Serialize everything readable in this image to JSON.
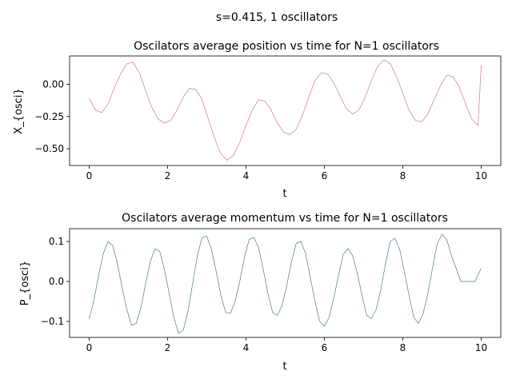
{
  "suptitle": "s=0.415, 1 oscillators",
  "chart_data": [
    {
      "type": "line",
      "title": "Oscilators average position vs time for N=1 oscillators",
      "xlabel": "t",
      "ylabel": "X_{osci}",
      "xlim": [
        -0.5,
        10.5
      ],
      "ylim": [
        -0.63,
        0.22
      ],
      "xticks": [
        0,
        2,
        4,
        6,
        8,
        10
      ],
      "xtick_labels": [
        "0",
        "2",
        "4",
        "6",
        "8",
        "10"
      ],
      "yticks": [
        0.0,
        -0.25,
        -0.5
      ],
      "ytick_labels": [
        "0.00",
        "−0.25",
        "−0.50"
      ],
      "color": "#d1788d",
      "x": [
        0,
        0.16,
        0.32,
        0.48,
        0.64,
        0.8,
        0.96,
        1.12,
        1.28,
        1.44,
        1.6,
        1.76,
        1.92,
        2.08,
        2.24,
        2.4,
        2.56,
        2.72,
        2.88,
        3.04,
        3.2,
        3.36,
        3.52,
        3.68,
        3.84,
        4.0,
        4.16,
        4.32,
        4.48,
        4.64,
        4.8,
        4.96,
        5.12,
        5.28,
        5.44,
        5.6,
        5.76,
        5.92,
        6.08,
        6.24,
        6.4,
        6.56,
        6.72,
        6.88,
        7.04,
        7.2,
        7.36,
        7.52,
        7.68,
        7.84,
        8.0,
        8.16,
        8.32,
        8.48,
        8.64,
        8.8,
        8.96,
        9.12,
        9.28,
        9.44,
        9.6,
        9.76,
        9.92
      ],
      "y": [
        -0.11,
        -0.2,
        -0.22,
        -0.15,
        -0.03,
        0.08,
        0.16,
        0.17,
        0.09,
        -0.05,
        -0.18,
        -0.27,
        -0.3,
        -0.28,
        -0.2,
        -0.1,
        -0.03,
        -0.04,
        -0.12,
        -0.27,
        -0.42,
        -0.54,
        -0.59,
        -0.55,
        -0.45,
        -0.32,
        -0.2,
        -0.12,
        -0.13,
        -0.2,
        -0.3,
        -0.37,
        -0.39,
        -0.35,
        -0.24,
        -0.1,
        0.03,
        0.09,
        0.08,
        0.01,
        -0.09,
        -0.19,
        -0.23,
        -0.2,
        -0.1,
        0.03,
        0.14,
        0.19,
        0.16,
        0.06,
        -0.07,
        -0.2,
        -0.28,
        -0.29,
        -0.23,
        -0.12,
        -0.01,
        0.07,
        0.06,
        -0.02,
        -0.15,
        -0.27,
        -0.32
      ],
      "x2": [
        10.0
      ],
      "y2": [
        0.15
      ]
    },
    {
      "type": "line",
      "title": "Oscilators average momentum vs time for N=1 oscillators",
      "xlabel": "t",
      "ylabel": "P_{osci}",
      "xlim": [
        -0.5,
        10.5
      ],
      "ylim": [
        -0.14,
        0.132
      ],
      "xticks": [
        0,
        2,
        4,
        6,
        8,
        10
      ],
      "xtick_labels": [
        "0",
        "2",
        "4",
        "6",
        "8",
        "10"
      ],
      "yticks": [
        0.1,
        0.0,
        -0.1
      ],
      "ytick_labels": [
        "0.1",
        "0.0",
        "−0.1"
      ],
      "color": "#4a7d94",
      "x": [
        0,
        0.12,
        0.24,
        0.36,
        0.48,
        0.6,
        0.72,
        0.84,
        0.96,
        1.08,
        1.2,
        1.32,
        1.44,
        1.56,
        1.68,
        1.8,
        1.92,
        2.04,
        2.16,
        2.28,
        2.4,
        2.52,
        2.64,
        2.76,
        2.88,
        3.0,
        3.12,
        3.24,
        3.36,
        3.48,
        3.6,
        3.72,
        3.84,
        3.96,
        4.08,
        4.2,
        4.32,
        4.44,
        4.56,
        4.68,
        4.8,
        4.92,
        5.04,
        5.16,
        5.28,
        5.4,
        5.52,
        5.64,
        5.76,
        5.88,
        6.0,
        6.12,
        6.24,
        6.36,
        6.48,
        6.6,
        6.72,
        6.84,
        6.96,
        7.08,
        7.2,
        7.32,
        7.44,
        7.56,
        7.68,
        7.8,
        7.92,
        8.04,
        8.16,
        8.28,
        8.4,
        8.52,
        8.64,
        8.76,
        8.88,
        9.0,
        9.12,
        9.24,
        9.36,
        9.48,
        9.6,
        9.72,
        9.84,
        10.0
      ],
      "y": [
        -0.094,
        -0.047,
        0.015,
        0.07,
        0.1,
        0.09,
        0.045,
        -0.015,
        -0.07,
        -0.11,
        -0.105,
        -0.065,
        -0.005,
        0.05,
        0.082,
        0.075,
        0.03,
        -0.03,
        -0.09,
        -0.13,
        -0.122,
        -0.075,
        -0.005,
        0.065,
        0.11,
        0.113,
        0.08,
        0.025,
        -0.035,
        -0.077,
        -0.08,
        -0.05,
        0.0,
        0.06,
        0.105,
        0.11,
        0.085,
        0.03,
        -0.03,
        -0.078,
        -0.085,
        -0.06,
        -0.01,
        0.05,
        0.095,
        0.1,
        0.07,
        0.01,
        -0.05,
        -0.1,
        -0.112,
        -0.09,
        -0.04,
        0.015,
        0.068,
        0.082,
        0.065,
        0.02,
        -0.035,
        -0.085,
        -0.093,
        -0.07,
        -0.02,
        0.045,
        0.1,
        0.108,
        0.08,
        0.025,
        -0.035,
        -0.09,
        -0.105,
        -0.08,
        -0.03,
        0.035,
        0.095,
        0.118,
        0.105,
        0.065,
        0.033,
        0.0,
        0.0,
        0.0,
        0.0,
        0.033
      ]
    }
  ]
}
